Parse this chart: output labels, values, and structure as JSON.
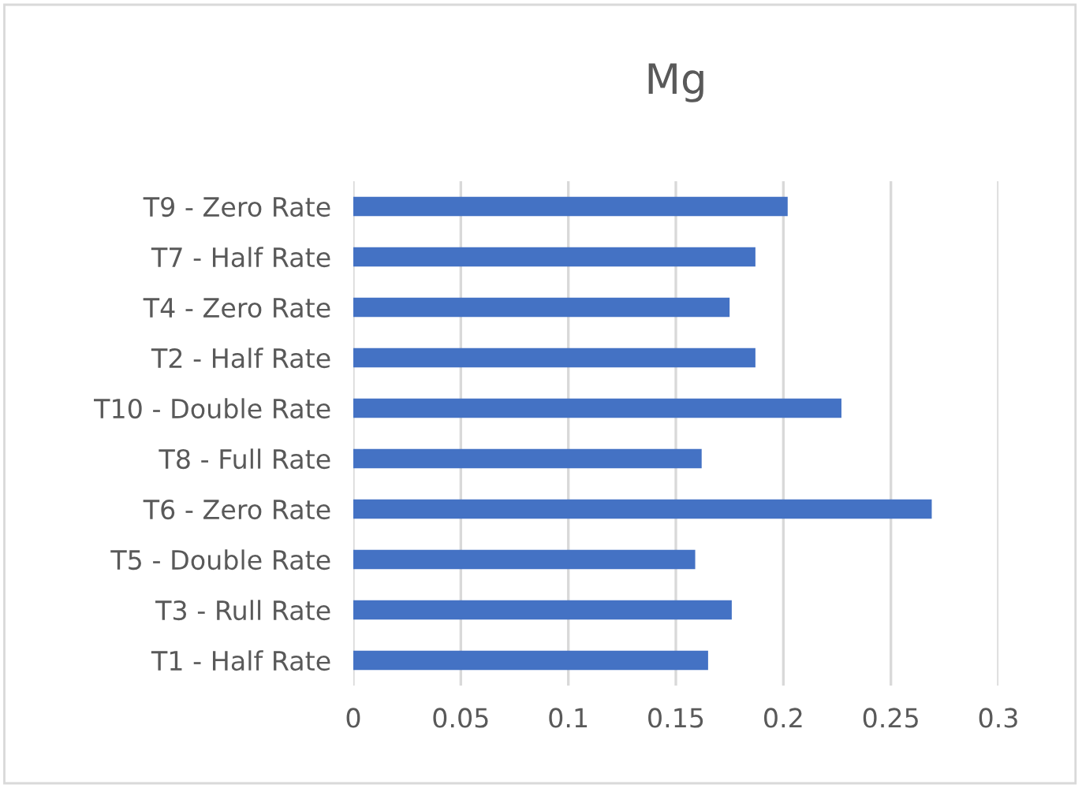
{
  "chart_data": {
    "type": "bar",
    "orientation": "horizontal",
    "title": "Mg",
    "categories": [
      "T9 - Zero Rate",
      "T7 - Half Rate",
      "T4 - Zero Rate",
      "T2 - Half Rate",
      "T10 - Double Rate",
      "T8 - Full Rate",
      "T6 - Zero Rate",
      "T5 - Double Rate",
      "T3 - Rull Rate",
      "T1 - Half Rate"
    ],
    "values": [
      0.202,
      0.187,
      0.175,
      0.187,
      0.227,
      0.162,
      0.269,
      0.159,
      0.176,
      0.165
    ],
    "color": "#4472c4",
    "xlim": [
      0,
      0.3
    ],
    "xticks": [
      0,
      0.05,
      0.1,
      0.15,
      0.2,
      0.25,
      0.3
    ],
    "grid": "x"
  }
}
